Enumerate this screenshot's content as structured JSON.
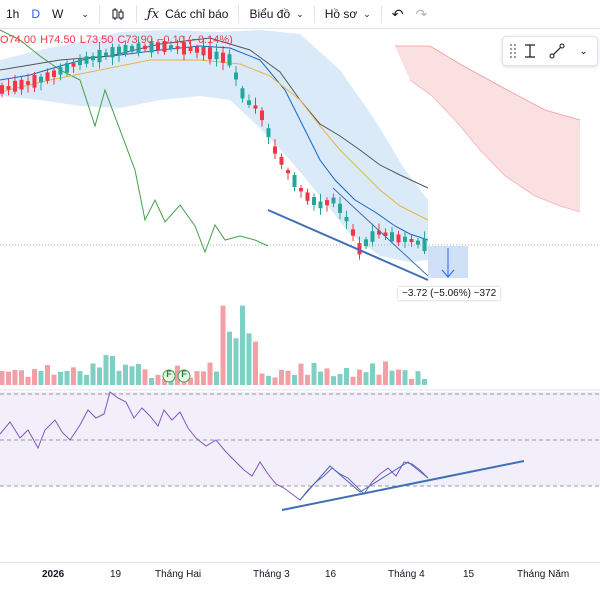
{
  "toolbar": {
    "timeframes": [
      "1h",
      "D",
      "W"
    ],
    "indicators_label": "Các chỉ báo",
    "chart_type_label": "Biểu đồ",
    "profile_label": "Hồ sơ"
  },
  "legend": {
    "open": "O74.00",
    "high": "H74.50",
    "low": "L73.50",
    "close": "C73.90",
    "change": "−0.10 (−0.14%)"
  },
  "measure_label": "−3.72 (−5.06%) −372",
  "flag_markers": [
    "F",
    "F"
  ],
  "x_axis": {
    "labels": [
      "2026",
      "19",
      "Tháng Hai",
      "Tháng 3",
      "16",
      "Tháng 4",
      "15",
      "Tháng Năm"
    ]
  },
  "icons": [
    "candles-icon",
    "fx-icon",
    "undo-icon",
    "redo-icon",
    "cursor-text-icon",
    "trend-line-icon",
    "chevron-down-icon"
  ],
  "colors": {
    "up": "#26a69a",
    "down": "#f23645",
    "accent": "#2962ff",
    "cloud_bear": "#f8d0d0",
    "band": "#cfe3f7",
    "rsi_line": "#7e57c2",
    "rsi_bg": "#f3effa"
  }
}
